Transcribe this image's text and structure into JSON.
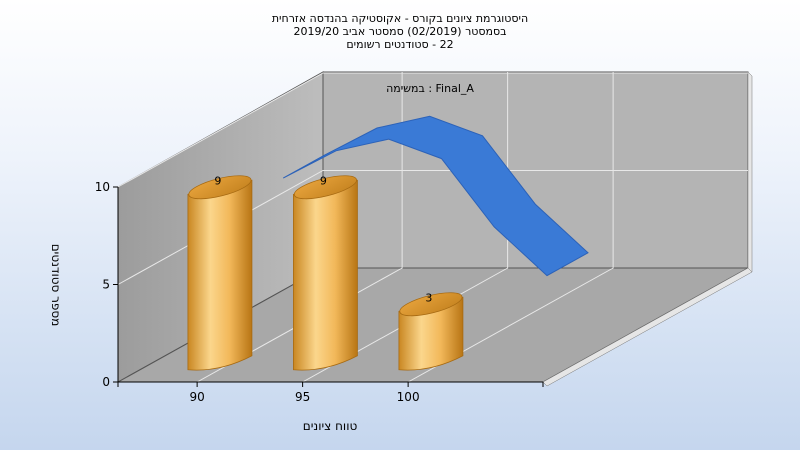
{
  "chart_data": {
    "type": "bar",
    "title": [
      "היסטוגרמת ציונים בקורס - אקוסטיקה בהנדסה אזרחית",
      "בסמסטר  (02/2019)  סמסטר אביב 2019/20",
      "22 - סטודנטים רשומים"
    ],
    "xlabel": "טווח ציונים",
    "ylabel": "מספר סטודנטים",
    "categories": [
      "90",
      "95",
      "100"
    ],
    "values": [
      9,
      9,
      3
    ],
    "data_labels": [
      "9",
      "9",
      "3"
    ],
    "ylim": [
      0,
      10
    ],
    "yticks": [
      "0",
      "5",
      "10"
    ],
    "series_label": "Final_A : במשימה",
    "curve": {
      "x": [
        90,
        92.5,
        95,
        97.5,
        100,
        102.5
      ],
      "y": [
        8,
        9.4,
        10.0,
        9.0,
        5.5,
        3.0
      ]
    },
    "grid": true,
    "colors": {
      "bar": "#e9a441",
      "bar_light": "#fbd68c",
      "bar_dark": "#b87514",
      "curve": "#3a7ad6",
      "curve_dark": "#2c62b8",
      "wall": "#b3b3b3",
      "floor": "#a9a9a9"
    }
  }
}
